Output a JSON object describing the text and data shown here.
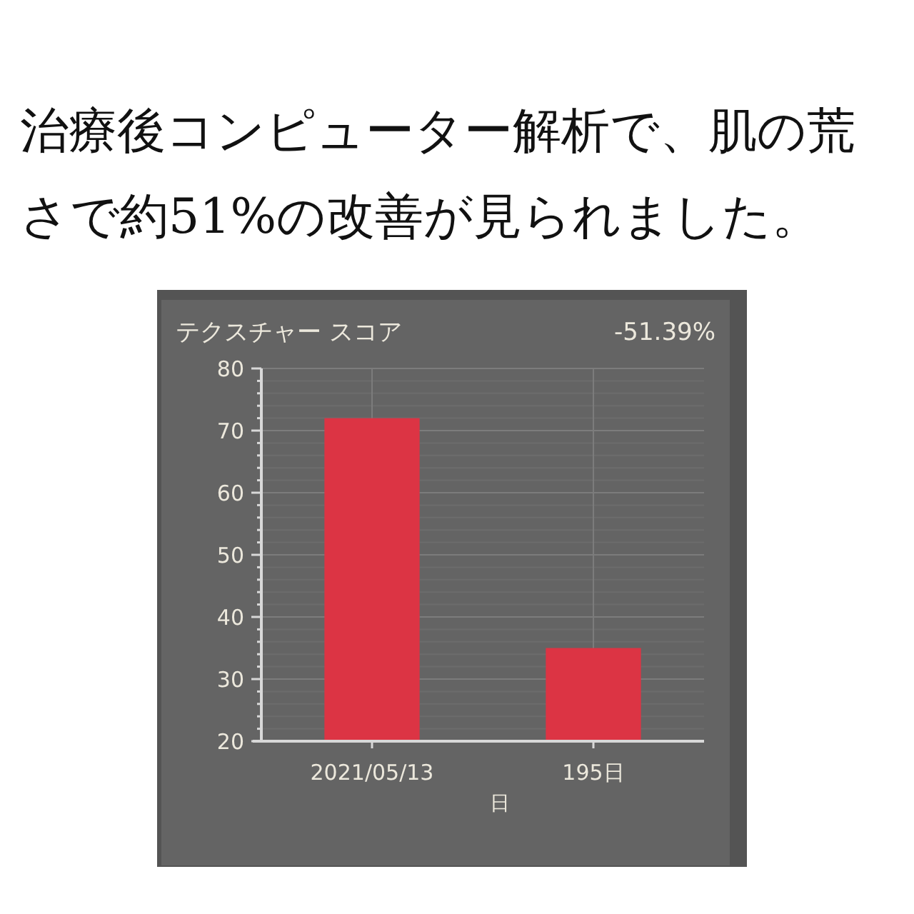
{
  "chart_data": {
    "type": "bar",
    "title": "治療後コンピューター解析で、肌の荒さで約51%の改善が見られました。",
    "subtitle": "テクスチャー スコア",
    "annotations": [
      "-51.39%"
    ],
    "xlabel": "日",
    "categories": [
      "2021/05/13",
      "195日"
    ],
    "values": [
      72,
      35
    ],
    "color": "#dc3444",
    "ylim": [
      20,
      80
    ],
    "yticks": [
      20,
      {
        "value": 22,
        "label": null
      },
      {
        "value": 24,
        "label": null
      },
      {
        "value": 26,
        "label": null
      },
      {
        "value": 28,
        "label": null
      },
      30,
      {
        "value": 32,
        "label": null
      },
      {
        "value": 34,
        "label": null
      },
      {
        "value": 36,
        "label": null
      },
      {
        "value": 38,
        "label": null
      },
      40,
      {
        "value": 42,
        "label": null
      },
      {
        "value": 44,
        "label": null
      },
      {
        "value": 46,
        "label": null
      },
      {
        "value": 48,
        "label": null
      },
      50,
      {
        "value": 52,
        "label": null
      },
      {
        "value": 54,
        "label": null
      },
      {
        "value": 56,
        "label": null
      },
      {
        "value": 58,
        "label": null
      },
      60,
      {
        "value": 62,
        "label": null
      },
      {
        "value": 64,
        "label": null
      },
      {
        "value": 66,
        "label": null
      },
      {
        "value": 68,
        "label": null
      },
      70,
      {
        "value": 72,
        "label": null
      },
      {
        "value": 74,
        "label": null
      },
      {
        "value": 76,
        "label": null
      },
      {
        "value": 78,
        "label": null
      },
      80
    ],
    "grid": true
  }
}
